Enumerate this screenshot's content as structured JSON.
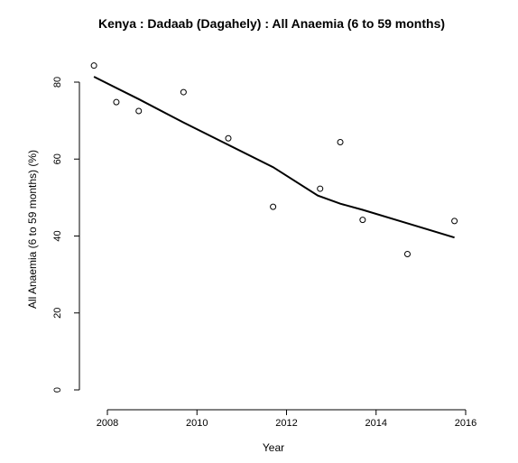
{
  "chart_data": {
    "type": "scatter",
    "title": "Kenya : Dadaab (Dagahely) : All Anaemia (6 to 59 months)",
    "xlabel": "Year",
    "ylabel": "All Anaemia (6 to 59 months) (%)",
    "xlim": [
      2007.6,
      2016.1
    ],
    "ylim": [
      0,
      84
    ],
    "xticks": [
      2008,
      2010,
      2012,
      2014,
      2016
    ],
    "yticks": [
      0,
      20,
      40,
      60,
      80
    ],
    "xtick_labels": [
      "2008",
      "2010",
      "2012",
      "2014",
      "2016"
    ],
    "ytick_labels": [
      "0",
      "20",
      "40",
      "60",
      "80"
    ],
    "grid": false,
    "legend": "none",
    "points": [
      {
        "x": 2007.7,
        "y": 84.3
      },
      {
        "x": 2008.2,
        "y": 74.8
      },
      {
        "x": 2008.7,
        "y": 72.5
      },
      {
        "x": 2009.7,
        "y": 77.4
      },
      {
        "x": 2010.7,
        "y": 65.4
      },
      {
        "x": 2011.7,
        "y": 47.6
      },
      {
        "x": 2012.75,
        "y": 52.3
      },
      {
        "x": 2013.2,
        "y": 64.4
      },
      {
        "x": 2013.7,
        "y": 44.2
      },
      {
        "x": 2014.7,
        "y": 35.3
      },
      {
        "x": 2015.75,
        "y": 43.9
      }
    ],
    "trend": {
      "x": [
        2007.7,
        2008.7,
        2009.7,
        2010.7,
        2011.7,
        2012.7,
        2013.2,
        2013.7,
        2014.7,
        2015.75
      ],
      "y": [
        81.4,
        75.6,
        69.5,
        63.7,
        57.9,
        50.5,
        48.4,
        46.8,
        43.3,
        39.6
      ]
    },
    "colors": {
      "points": "#000000",
      "trend": "#000000",
      "axis": "#000000"
    }
  }
}
